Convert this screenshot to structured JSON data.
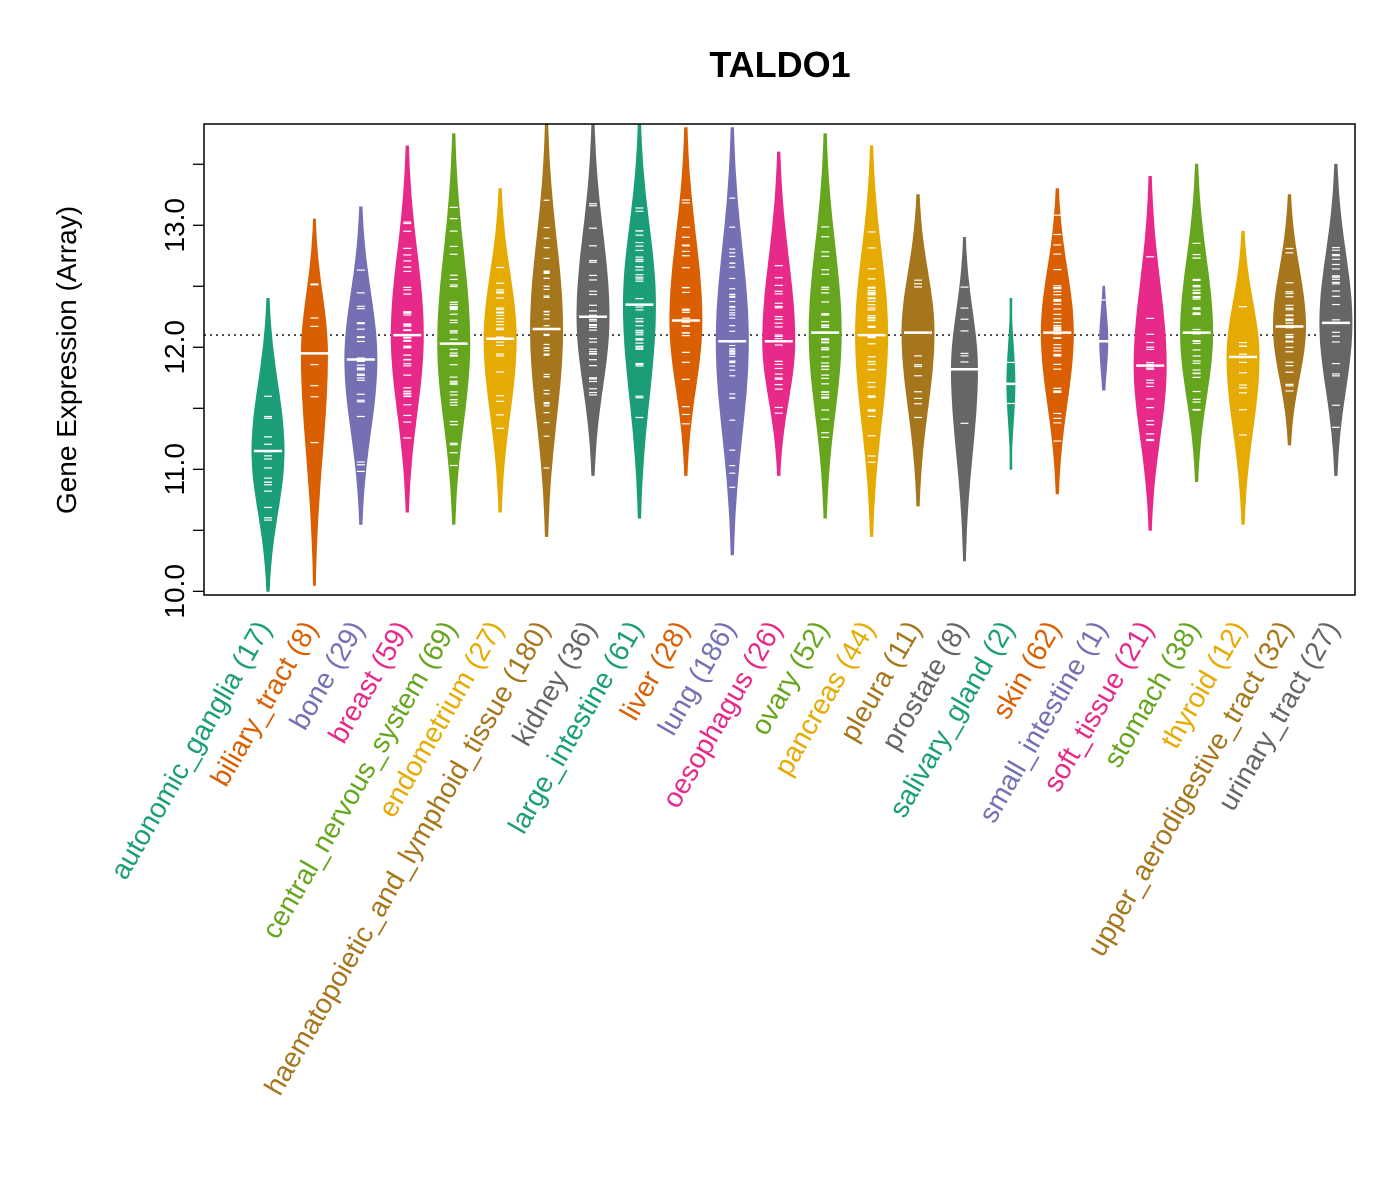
{
  "chart_data": {
    "type": "violin",
    "title": "TALDO1",
    "ylabel": "Gene Expression (Array)",
    "xlabel": "",
    "ylim": [
      9.97,
      13.83
    ],
    "yticks": [
      "10.0",
      "11.0",
      "12.0",
      "13.0"
    ],
    "reference_line": 12.1,
    "categories": [
      {
        "label": "autonomic_ganglia",
        "n": "(17)",
        "color": "#1B9E77",
        "median": 11.15,
        "min": 10.0,
        "max": 12.4
      },
      {
        "label": "biliary_tract",
        "n": "(8)",
        "color": "#D95F02",
        "median": 11.95,
        "min": 10.05,
        "max": 13.05
      },
      {
        "label": "bone",
        "n": "(29)",
        "color": "#7570B3",
        "median": 11.9,
        "min": 10.55,
        "max": 13.15
      },
      {
        "label": "breast",
        "n": "(59)",
        "color": "#E7298A",
        "median": 12.1,
        "min": 10.65,
        "max": 13.65
      },
      {
        "label": "central_nervous_system",
        "n": "(69)",
        "color": "#66A61E",
        "median": 12.03,
        "min": 10.55,
        "max": 13.75
      },
      {
        "label": "endometrium",
        "n": "(27)",
        "color": "#E6AB02",
        "median": 12.07,
        "min": 10.65,
        "max": 13.3
      },
      {
        "label": "haematopoietic_and_lymphoid_tissue",
        "n": "(180)",
        "color": "#A6761D",
        "median": 12.15,
        "min": 10.45,
        "max": 13.83
      },
      {
        "label": "kidney",
        "n": "(36)",
        "color": "#666666",
        "median": 12.25,
        "min": 10.95,
        "max": 13.83
      },
      {
        "label": "large_intestine",
        "n": "(61)",
        "color": "#1B9E77",
        "median": 12.35,
        "min": 10.6,
        "max": 13.83
      },
      {
        "label": "liver",
        "n": "(28)",
        "color": "#D95F02",
        "median": 12.22,
        "min": 10.95,
        "max": 13.8
      },
      {
        "label": "lung",
        "n": "(186)",
        "color": "#7570B3",
        "median": 12.05,
        "min": 10.3,
        "max": 13.8
      },
      {
        "label": "oesophagus",
        "n": "(26)",
        "color": "#E7298A",
        "median": 12.05,
        "min": 10.95,
        "max": 13.6
      },
      {
        "label": "ovary",
        "n": "(52)",
        "color": "#66A61E",
        "median": 12.12,
        "min": 10.6,
        "max": 13.75
      },
      {
        "label": "pancreas",
        "n": "(44)",
        "color": "#E6AB02",
        "median": 12.1,
        "min": 10.45,
        "max": 13.65
      },
      {
        "label": "pleura",
        "n": "(11)",
        "color": "#A6761D",
        "median": 12.12,
        "min": 10.7,
        "max": 13.25
      },
      {
        "label": "prostate",
        "n": "(8)",
        "color": "#666666",
        "median": 11.82,
        "min": 10.25,
        "max": 12.9
      },
      {
        "label": "salivary_gland",
        "n": "(2)",
        "color": "#1B9E77",
        "median": 11.7,
        "min": 11.0,
        "max": 12.4
      },
      {
        "label": "skin",
        "n": "(62)",
        "color": "#D95F02",
        "median": 12.12,
        "min": 10.8,
        "max": 13.3
      },
      {
        "label": "small_intestine",
        "n": "(1)",
        "color": "#7570B3",
        "median": 12.05,
        "min": 11.65,
        "max": 12.5
      },
      {
        "label": "soft_tissue",
        "n": "(21)",
        "color": "#E7298A",
        "median": 11.85,
        "min": 10.5,
        "max": 13.4
      },
      {
        "label": "stomach",
        "n": "(38)",
        "color": "#66A61E",
        "median": 12.12,
        "min": 10.9,
        "max": 13.5
      },
      {
        "label": "thyroid",
        "n": "(12)",
        "color": "#E6AB02",
        "median": 11.92,
        "min": 10.55,
        "max": 12.95
      },
      {
        "label": "upper_aerodigestive_tract",
        "n": "(32)",
        "color": "#A6761D",
        "median": 12.17,
        "min": 11.2,
        "max": 13.25
      },
      {
        "label": "urinary_tract",
        "n": "(27)",
        "color": "#666666",
        "median": 12.2,
        "min": 10.95,
        "max": 13.5
      }
    ]
  }
}
